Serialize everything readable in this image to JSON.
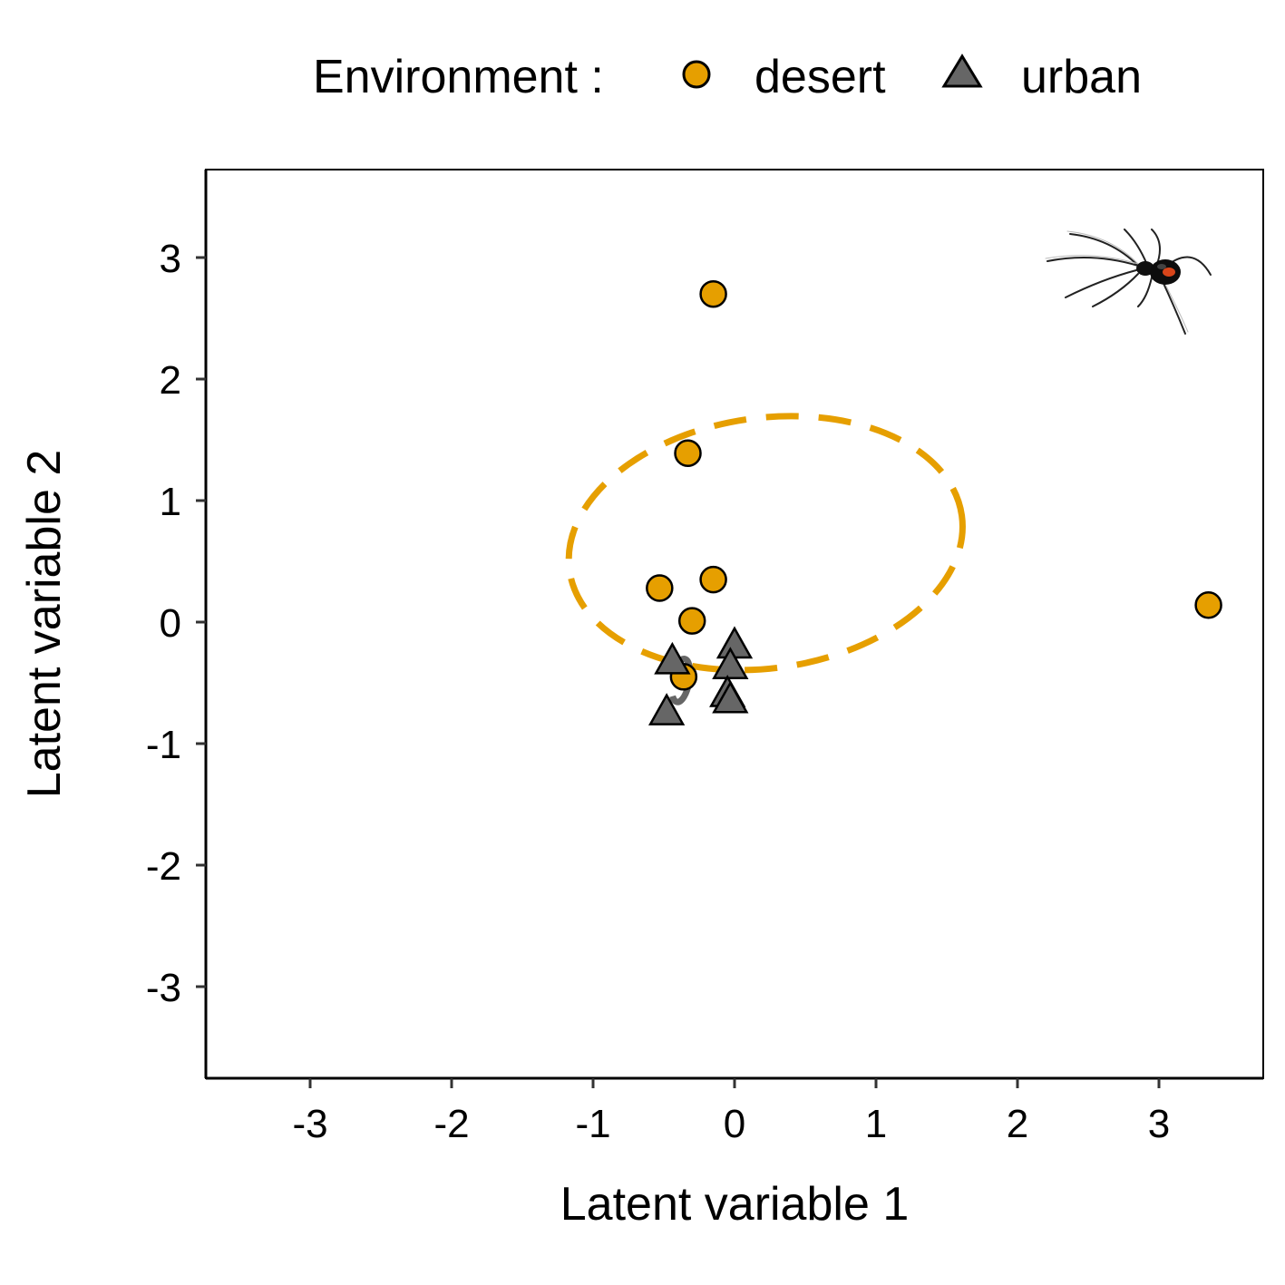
{
  "chart_data": {
    "type": "scatter",
    "xlabel": "Latent variable 1",
    "ylabel": "Latent variable 2",
    "xlim": [
      -3.75,
      3.75
    ],
    "ylim": [
      -3.75,
      3.75
    ],
    "xticks": [
      -3,
      -2,
      -1,
      0,
      1,
      2,
      3
    ],
    "yticks": [
      -3,
      -2,
      -1,
      0,
      1,
      2,
      3
    ],
    "grid": false,
    "legend": {
      "title": "Environment :",
      "placement": "top",
      "entries": [
        {
          "label": "desert",
          "shape": "circle",
          "color": "#E69F00"
        },
        {
          "label": "urban",
          "shape": "triangle",
          "color": "#666666"
        }
      ]
    },
    "series": [
      {
        "name": "desert",
        "shape": "circle",
        "color": "#E69F00",
        "points": [
          {
            "x": -0.15,
            "y": 2.7
          },
          {
            "x": -0.33,
            "y": 1.39
          },
          {
            "x": -0.15,
            "y": 0.35
          },
          {
            "x": -0.53,
            "y": 0.28
          },
          {
            "x": -0.3,
            "y": 0.01
          },
          {
            "x": -0.36,
            "y": -0.45
          },
          {
            "x": 3.35,
            "y": 0.14
          }
        ],
        "ellipse": {
          "cx": 0.22,
          "cy": 0.65,
          "rx": 1.4,
          "ry": 1.03,
          "angle_deg": -8,
          "dashed": true
        }
      },
      {
        "name": "urban",
        "shape": "triangle",
        "color": "#666666",
        "points": [
          {
            "x": 0.0,
            "y": -0.2
          },
          {
            "x": -0.44,
            "y": -0.33
          },
          {
            "x": -0.03,
            "y": -0.37
          },
          {
            "x": -0.05,
            "y": -0.6
          },
          {
            "x": -0.03,
            "y": -0.65
          },
          {
            "x": -0.48,
            "y": -0.75
          }
        ],
        "ellipse": {
          "cx": -0.38,
          "cy": -0.48,
          "rx": 0.06,
          "ry": 0.18,
          "angle_deg": 10,
          "dashed": true
        }
      }
    ],
    "annotations": [
      {
        "kind": "image",
        "name": "spider-silhouette",
        "x": 3.0,
        "y": 2.9
      }
    ]
  }
}
